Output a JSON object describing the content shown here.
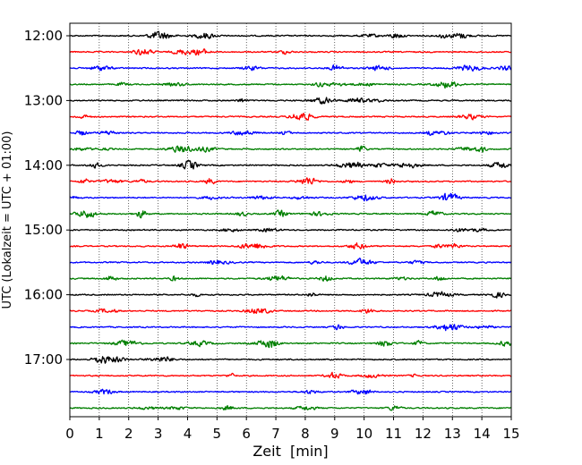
{
  "chart_data": {
    "type": "line",
    "title": "",
    "xlabel": "Zeit  [min]",
    "ylabel": "UTC (Lokalzeit = UTC + 01:00)",
    "xlim": [
      0,
      15
    ],
    "x_ticks": [
      "0",
      "1",
      "2",
      "3",
      "4",
      "5",
      "6",
      "7",
      "8",
      "9",
      "10",
      "11",
      "12",
      "13",
      "14",
      "15"
    ],
    "y_ticks": [
      "12:00",
      "13:00",
      "14:00",
      "15:00",
      "16:00",
      "17:00"
    ],
    "trace_interval_minutes": 15,
    "trace_start": "12:00",
    "trace_colors": [
      "#000000",
      "#ff0000",
      "#0000ff",
      "#007f00"
    ],
    "grid": "vertical dotted lines at each minute",
    "series": [
      {
        "start": "12:00",
        "color": "#000000"
      },
      {
        "start": "12:15",
        "color": "#ff0000"
      },
      {
        "start": "12:30",
        "color": "#0000ff"
      },
      {
        "start": "12:45",
        "color": "#007f00"
      },
      {
        "start": "13:00",
        "color": "#000000"
      },
      {
        "start": "13:15",
        "color": "#ff0000"
      },
      {
        "start": "13:30",
        "color": "#0000ff"
      },
      {
        "start": "13:45",
        "color": "#007f00"
      },
      {
        "start": "14:00",
        "color": "#000000"
      },
      {
        "start": "14:15",
        "color": "#ff0000"
      },
      {
        "start": "14:30",
        "color": "#0000ff"
      },
      {
        "start": "14:45",
        "color": "#007f00"
      },
      {
        "start": "15:00",
        "color": "#000000"
      },
      {
        "start": "15:15",
        "color": "#ff0000"
      },
      {
        "start": "15:30",
        "color": "#0000ff"
      },
      {
        "start": "15:45",
        "color": "#007f00"
      },
      {
        "start": "16:00",
        "color": "#000000"
      },
      {
        "start": "16:15",
        "color": "#ff0000"
      },
      {
        "start": "16:30",
        "color": "#0000ff"
      },
      {
        "start": "16:45",
        "color": "#007f00"
      },
      {
        "start": "17:00",
        "color": "#000000"
      },
      {
        "start": "17:15",
        "color": "#ff0000"
      },
      {
        "start": "17:30",
        "color": "#0000ff"
      },
      {
        "start": "17:45",
        "color": "#007f00"
      }
    ]
  }
}
